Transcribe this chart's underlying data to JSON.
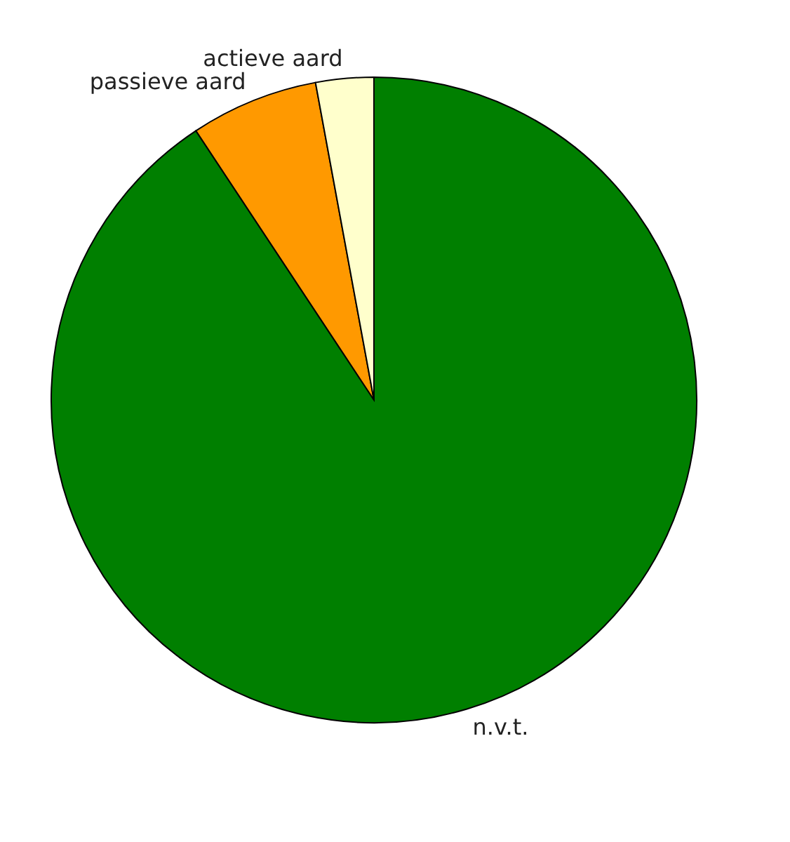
{
  "chart_data": {
    "type": "pie",
    "categories": [
      "n.v.t.",
      "passieve aard",
      "actieve aard"
    ],
    "values": [
      90.7,
      6.4,
      2.9
    ],
    "colors": [
      "#007f00",
      "#ff9900",
      "#ffffcc"
    ]
  }
}
